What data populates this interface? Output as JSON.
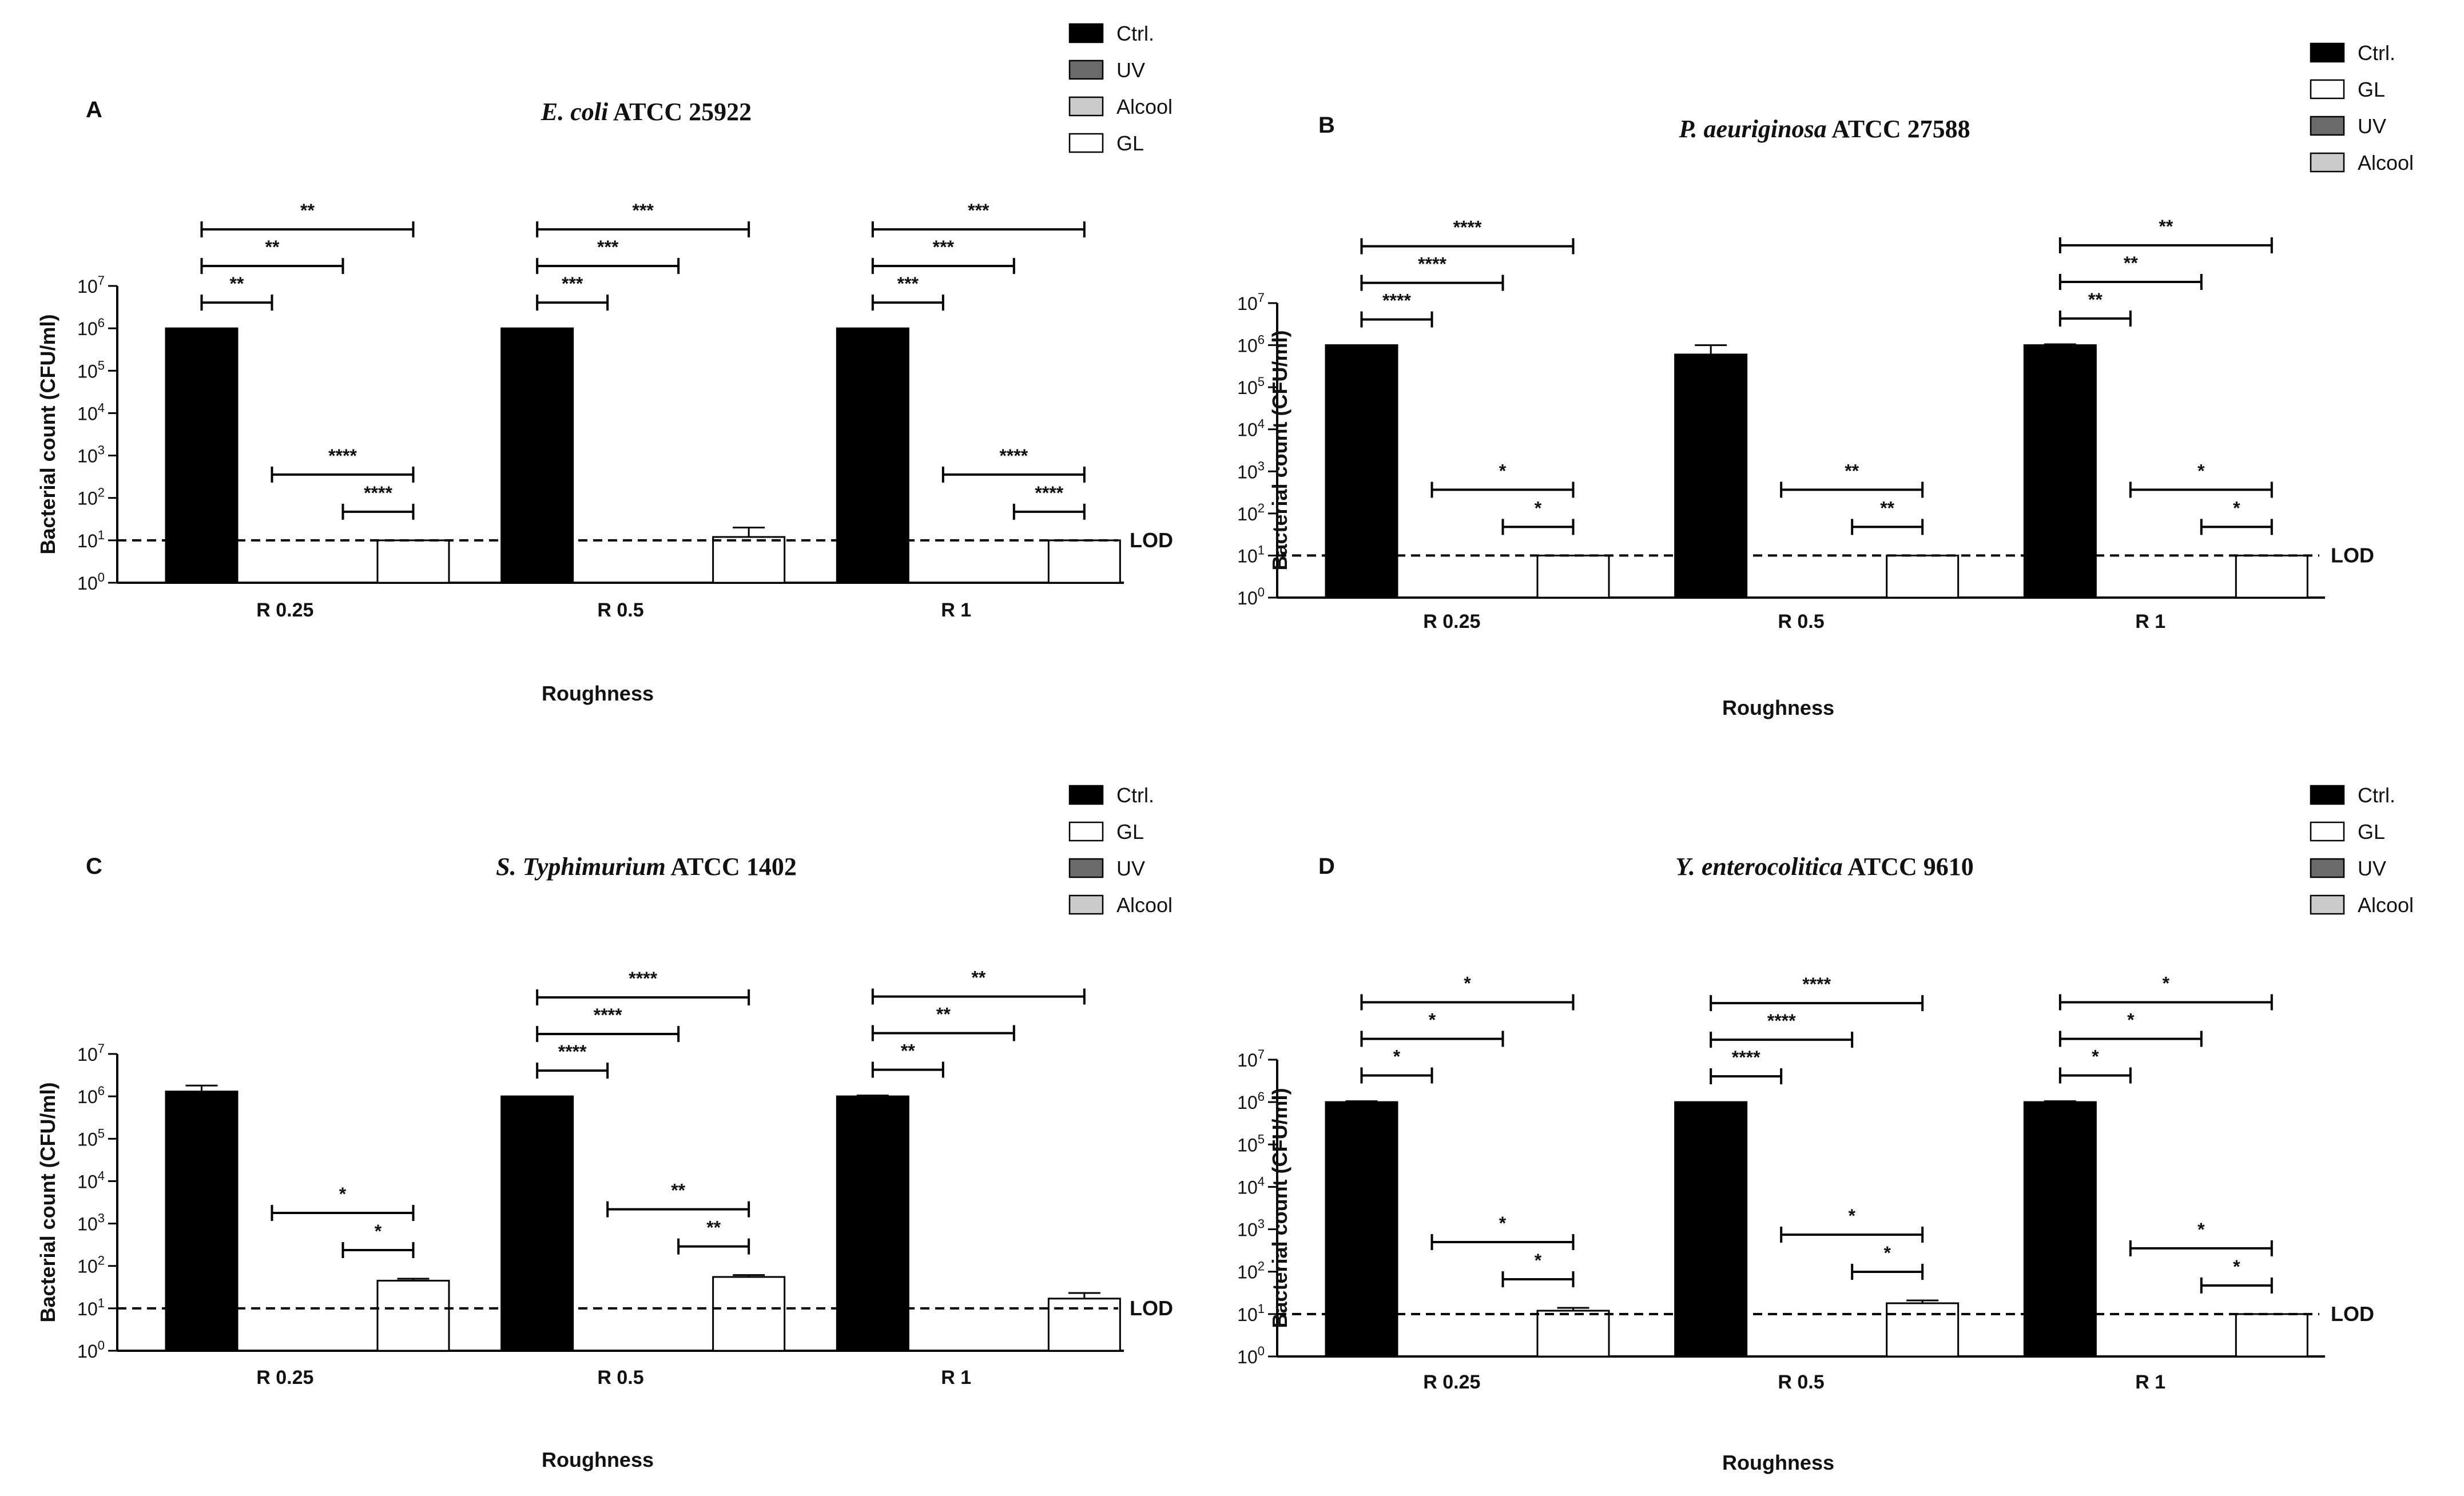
{
  "colors": {
    "Ctrl.": "#000000",
    "UV": "#6b6b6b",
    "Alcool": "#cccccc",
    "GL": "#ffffff"
  },
  "chart_data": [
    {
      "type": "bar",
      "panel": "A",
      "title_species": "E. coli",
      "title_strain": "ATCC 25922",
      "xlabel": "Roughness",
      "ylabel": "Bacterial count (CFU/ml)",
      "y_scale": "log10",
      "ylim": [
        1,
        10000000
      ],
      "y_ticks": [
        {
          "b": "10",
          "e": "0"
        },
        {
          "b": "10",
          "e": "1"
        },
        {
          "b": "10",
          "e": "2"
        },
        {
          "b": "10",
          "e": "3"
        },
        {
          "b": "10",
          "e": "4"
        },
        {
          "b": "10",
          "e": "5"
        },
        {
          "b": "10",
          "e": "6"
        },
        {
          "b": "10",
          "e": "7"
        }
      ],
      "categories": [
        "R 0.25",
        "R 0.5",
        "R 1"
      ],
      "legend": [
        "Ctrl.",
        "UV",
        "Alcool",
        "GL"
      ],
      "series": [
        {
          "name": "Ctrl.",
          "values": [
            1000000,
            1000000,
            1000000
          ],
          "errors": [
            0,
            0,
            0
          ]
        },
        {
          "name": "UV",
          "values": [
            1,
            1,
            1
          ],
          "errors": [
            0,
            0,
            0
          ]
        },
        {
          "name": "Alcool",
          "values": [
            1,
            1,
            1
          ],
          "errors": [
            0,
            0,
            0
          ]
        },
        {
          "name": "GL",
          "values": [
            10,
            12,
            10
          ],
          "errors": [
            0,
            8,
            0
          ]
        }
      ],
      "lod": {
        "value": 10,
        "label": "LOD"
      },
      "significance": [
        {
          "group": 0,
          "from": 0,
          "to": 1,
          "label": "**"
        },
        {
          "group": 0,
          "from": 0,
          "to": 2,
          "label": "**"
        },
        {
          "group": 0,
          "from": 0,
          "to": 3,
          "label": "**"
        },
        {
          "group": 0,
          "from": 1,
          "to": 3,
          "label": "****"
        },
        {
          "group": 0,
          "from": 2,
          "to": 3,
          "label": "****"
        },
        {
          "group": 1,
          "from": 0,
          "to": 1,
          "label": "***"
        },
        {
          "group": 1,
          "from": 0,
          "to": 2,
          "label": "***"
        },
        {
          "group": 1,
          "from": 0,
          "to": 3,
          "label": "***"
        },
        {
          "group": 2,
          "from": 0,
          "to": 1,
          "label": "***"
        },
        {
          "group": 2,
          "from": 0,
          "to": 2,
          "label": "***"
        },
        {
          "group": 2,
          "from": 0,
          "to": 3,
          "label": "***"
        },
        {
          "group": 2,
          "from": 1,
          "to": 3,
          "label": "****"
        },
        {
          "group": 2,
          "from": 2,
          "to": 3,
          "label": "****"
        }
      ]
    },
    {
      "type": "bar",
      "panel": "B",
      "title_species": "P. aeuriginosa",
      "title_strain": "ATCC 27588",
      "xlabel": "Roughness",
      "ylabel": "Bacterial count (CFU/ml)",
      "y_scale": "log10",
      "ylim": [
        1,
        10000000
      ],
      "y_ticks": [
        {
          "b": "10",
          "e": "0"
        },
        {
          "b": "10",
          "e": "1"
        },
        {
          "b": "10",
          "e": "2"
        },
        {
          "b": "10",
          "e": "3"
        },
        {
          "b": "10",
          "e": "4"
        },
        {
          "b": "10",
          "e": "5"
        },
        {
          "b": "10",
          "e": "6"
        },
        {
          "b": "10",
          "e": "7"
        }
      ],
      "categories": [
        "R 0.25",
        "R 0.5",
        "R 1"
      ],
      "legend": [
        "Ctrl.",
        "GL",
        "UV",
        "Alcool"
      ],
      "series": [
        {
          "name": "Ctrl.",
          "values": [
            1000000,
            600000,
            1000000
          ],
          "errors": [
            0,
            400000,
            50000
          ]
        },
        {
          "name": "UV",
          "values": [
            1,
            1,
            1
          ],
          "errors": [
            0,
            0,
            0
          ]
        },
        {
          "name": "Alcool",
          "values": [
            1,
            1,
            1
          ],
          "errors": [
            0,
            0,
            0
          ]
        },
        {
          "name": "GL",
          "values": [
            10,
            10,
            10
          ],
          "errors": [
            0,
            0,
            0
          ]
        }
      ],
      "lod": {
        "value": 10,
        "label": "LOD"
      },
      "significance": [
        {
          "group": 0,
          "from": 0,
          "to": 1,
          "label": "****"
        },
        {
          "group": 0,
          "from": 0,
          "to": 2,
          "label": "****"
        },
        {
          "group": 0,
          "from": 0,
          "to": 3,
          "label": "****"
        },
        {
          "group": 0,
          "from": 1,
          "to": 3,
          "label": "*"
        },
        {
          "group": 0,
          "from": 2,
          "to": 3,
          "label": "*"
        },
        {
          "group": 1,
          "from": 1,
          "to": 3,
          "label": "**"
        },
        {
          "group": 1,
          "from": 2,
          "to": 3,
          "label": "**"
        },
        {
          "group": 2,
          "from": 0,
          "to": 1,
          "label": "**"
        },
        {
          "group": 2,
          "from": 0,
          "to": 2,
          "label": "**"
        },
        {
          "group": 2,
          "from": 0,
          "to": 3,
          "label": "**"
        },
        {
          "group": 2,
          "from": 1,
          "to": 3,
          "label": "*"
        },
        {
          "group": 2,
          "from": 2,
          "to": 3,
          "label": "*"
        }
      ]
    },
    {
      "type": "bar",
      "panel": "C",
      "title_species": "S. Typhimurium",
      "title_strain": "ATCC 1402",
      "xlabel": "Roughness",
      "ylabel": "Bacterial count (CFU/ml)",
      "y_scale": "log10",
      "ylim": [
        1,
        10000000
      ],
      "y_ticks": [
        {
          "b": "10",
          "e": "0"
        },
        {
          "b": "10",
          "e": "1"
        },
        {
          "b": "10",
          "e": "2"
        },
        {
          "b": "10",
          "e": "3"
        },
        {
          "b": "10",
          "e": "4"
        },
        {
          "b": "10",
          "e": "5"
        },
        {
          "b": "10",
          "e": "6"
        },
        {
          "b": "10",
          "e": "7"
        }
      ],
      "categories": [
        "R 0.25",
        "R 0.5",
        "R 1"
      ],
      "legend": [
        "Ctrl.",
        "GL",
        "UV",
        "Alcool"
      ],
      "series": [
        {
          "name": "Ctrl.",
          "values": [
            1300000,
            1000000,
            1000000
          ],
          "errors": [
            500000,
            0,
            50000
          ]
        },
        {
          "name": "UV",
          "values": [
            1,
            1,
            1
          ],
          "errors": [
            0,
            0,
            0
          ]
        },
        {
          "name": "Alcool",
          "values": [
            1,
            1,
            1
          ],
          "errors": [
            0,
            0,
            0
          ]
        },
        {
          "name": "GL",
          "values": [
            45,
            55,
            17
          ],
          "errors": [
            5,
            6,
            6
          ]
        }
      ],
      "lod": {
        "value": 10,
        "label": "LOD"
      },
      "significance": [
        {
          "group": 0,
          "from": 1,
          "to": 3,
          "label": "*"
        },
        {
          "group": 0,
          "from": 2,
          "to": 3,
          "label": "*"
        },
        {
          "group": 1,
          "from": 0,
          "to": 1,
          "label": "****"
        },
        {
          "group": 1,
          "from": 0,
          "to": 2,
          "label": "****"
        },
        {
          "group": 1,
          "from": 0,
          "to": 3,
          "label": "****"
        },
        {
          "group": 1,
          "from": 1,
          "to": 3,
          "label": "**"
        },
        {
          "group": 1,
          "from": 2,
          "to": 3,
          "label": "**"
        },
        {
          "group": 2,
          "from": 0,
          "to": 1,
          "label": "**"
        },
        {
          "group": 2,
          "from": 0,
          "to": 2,
          "label": "**"
        },
        {
          "group": 2,
          "from": 0,
          "to": 3,
          "label": "**"
        }
      ]
    },
    {
      "type": "bar",
      "panel": "D",
      "title_species": "Y. enterocolitica",
      "title_strain": "ATCC 9610",
      "xlabel": "Roughness",
      "ylabel": "Bacterial count (CFU/ml)",
      "y_scale": "log10",
      "ylim": [
        1,
        10000000
      ],
      "y_ticks": [
        {
          "b": "10",
          "e": "0"
        },
        {
          "b": "10",
          "e": "1"
        },
        {
          "b": "10",
          "e": "2"
        },
        {
          "b": "10",
          "e": "3"
        },
        {
          "b": "10",
          "e": "4"
        },
        {
          "b": "10",
          "e": "5"
        },
        {
          "b": "10",
          "e": "6"
        },
        {
          "b": "10",
          "e": "7"
        }
      ],
      "categories": [
        "R 0.25",
        "R 0.5",
        "R 1"
      ],
      "legend": [
        "Ctrl.",
        "GL",
        "UV",
        "Alcool"
      ],
      "series": [
        {
          "name": "Ctrl.",
          "values": [
            1000000,
            1000000,
            1000000
          ],
          "errors": [
            50000,
            0,
            50000
          ]
        },
        {
          "name": "UV",
          "values": [
            1,
            1,
            1
          ],
          "errors": [
            0,
            0,
            0
          ]
        },
        {
          "name": "Alcool",
          "values": [
            1,
            1,
            1
          ],
          "errors": [
            0,
            0,
            0
          ]
        },
        {
          "name": "GL",
          "values": [
            12,
            18,
            10
          ],
          "errors": [
            2,
            3,
            0
          ]
        }
      ],
      "lod": {
        "value": 10,
        "label": "LOD"
      },
      "significance": [
        {
          "group": 0,
          "from": 0,
          "to": 1,
          "label": "*"
        },
        {
          "group": 0,
          "from": 0,
          "to": 2,
          "label": "*"
        },
        {
          "group": 0,
          "from": 0,
          "to": 3,
          "label": "*"
        },
        {
          "group": 0,
          "from": 1,
          "to": 3,
          "label": "*"
        },
        {
          "group": 0,
          "from": 2,
          "to": 3,
          "label": "*"
        },
        {
          "group": 1,
          "from": 0,
          "to": 1,
          "label": "****"
        },
        {
          "group": 1,
          "from": 0,
          "to": 2,
          "label": "****"
        },
        {
          "group": 1,
          "from": 0,
          "to": 3,
          "label": "****"
        },
        {
          "group": 1,
          "from": 1,
          "to": 3,
          "label": "*"
        },
        {
          "group": 1,
          "from": 2,
          "to": 3,
          "label": "*"
        },
        {
          "group": 2,
          "from": 0,
          "to": 1,
          "label": "*"
        },
        {
          "group": 2,
          "from": 0,
          "to": 2,
          "label": "*"
        },
        {
          "group": 2,
          "from": 0,
          "to": 3,
          "label": "*"
        },
        {
          "group": 2,
          "from": 1,
          "to": 3,
          "label": "*"
        },
        {
          "group": 2,
          "from": 2,
          "to": 3,
          "label": "*"
        }
      ]
    }
  ]
}
